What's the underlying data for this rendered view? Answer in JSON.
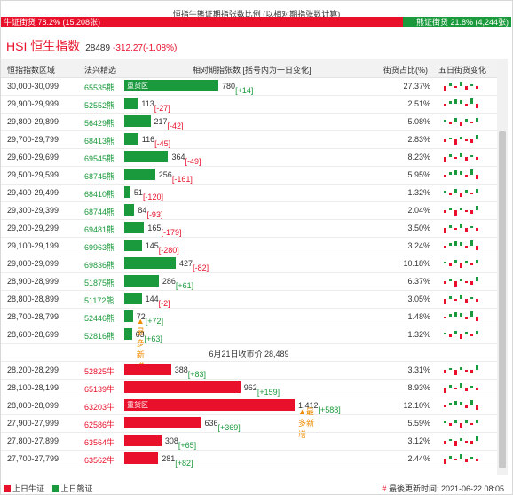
{
  "title": "恒指牛熊证期指张数比例 (以相对期指张数计算)",
  "ratio": {
    "bull_label": "牛证街货 78.2% (15,208张)",
    "bear_label": "熊证街货 21.8% (4,244张)",
    "bull_fraction": 0.782
  },
  "index": {
    "name": "HSI 恒生指数",
    "price": "28489",
    "change": "-312.27(-1.08%)"
  },
  "headers": {
    "range": "恒指指数区域",
    "code": "法兴精选",
    "rel": "相对期指张数 [括号内为一日变化]",
    "share": "街货占比(%)",
    "trend": "五日街货变化"
  },
  "rows_bear": [
    {
      "range": "30,000-30,099",
      "code": "65535熊",
      "value": 780,
      "label": "780",
      "change": "[+14]",
      "pct": "27.37%",
      "tag": "重货区",
      "note": ""
    },
    {
      "range": "29,900-29,999",
      "code": "52552熊",
      "value": 113,
      "label": "113",
      "change": "[-27]",
      "pct": "2.51%",
      "tag": "",
      "note": ""
    },
    {
      "range": "29,800-29,899",
      "code": "56429熊",
      "value": 217,
      "label": "217",
      "change": "[-42]",
      "pct": "5.08%",
      "tag": "",
      "note": ""
    },
    {
      "range": "29,700-29,799",
      "code": "68413熊",
      "value": 116,
      "label": "116",
      "change": "[-45]",
      "pct": "2.83%",
      "tag": "",
      "note": ""
    },
    {
      "range": "29,600-29,699",
      "code": "69545熊",
      "value": 364,
      "label": "364",
      "change": "[-49]",
      "pct": "8.23%",
      "tag": "",
      "note": ""
    },
    {
      "range": "29,500-29,599",
      "code": "68745熊",
      "value": 256,
      "label": "256",
      "change": "[-161]",
      "pct": "5.95%",
      "tag": "",
      "note": ""
    },
    {
      "range": "29,400-29,499",
      "code": "68410熊",
      "value": 51,
      "label": "51",
      "change": "[-120]",
      "pct": "1.32%",
      "tag": "",
      "note": ""
    },
    {
      "range": "29,300-29,399",
      "code": "68744熊",
      "value": 84,
      "label": "84",
      "change": "[-93]",
      "pct": "2.04%",
      "tag": "",
      "note": ""
    },
    {
      "range": "29,200-29,299",
      "code": "69481熊",
      "value": 165,
      "label": "165",
      "change": "[-179]",
      "pct": "3.50%",
      "tag": "",
      "note": ""
    },
    {
      "range": "29,100-29,199",
      "code": "69963熊",
      "value": 145,
      "label": "145",
      "change": "[-280]",
      "pct": "3.24%",
      "tag": "",
      "note": ""
    },
    {
      "range": "29,000-29,099",
      "code": "69836熊",
      "value": 427,
      "label": "427",
      "change": "[-82]",
      "pct": "10.18%",
      "tag": "",
      "note": ""
    },
    {
      "range": "28,900-28,999",
      "code": "51875熊",
      "value": 286,
      "label": "286",
      "change": "[+61]",
      "pct": "6.37%",
      "tag": "",
      "note": ""
    },
    {
      "range": "28,800-28,899",
      "code": "51172熊",
      "value": 144,
      "label": "144",
      "change": "[-2]",
      "pct": "3.05%",
      "tag": "",
      "note": ""
    },
    {
      "range": "28,700-28,799",
      "code": "52446熊",
      "value": 72,
      "label": "72",
      "change": "[+72]",
      "pct": "1.48%",
      "tag": "",
      "note": "▲最多新增"
    },
    {
      "range": "28,600-28,699",
      "code": "52816熊",
      "value": 63,
      "label": "63",
      "change": "[+63]",
      "pct": "1.32%",
      "tag": "",
      "note": ""
    }
  ],
  "separator": "6月21日收市价 28,489",
  "rows_bull": [
    {
      "range": "28,200-28,299",
      "code": "52825牛",
      "value": 388,
      "label": "388",
      "change": "[+83]",
      "pct": "3.31%",
      "tag": "",
      "note": ""
    },
    {
      "range": "28,100-28,199",
      "code": "65139牛",
      "value": 962,
      "label": "962",
      "change": "[+159]",
      "pct": "8.93%",
      "tag": "",
      "note": ""
    },
    {
      "range": "28,000-28,099",
      "code": "63203牛",
      "value": 1412,
      "label": "1,412",
      "change": "[+588]",
      "pct": "12.10%",
      "tag": "重货区",
      "note": "▲最多新增"
    },
    {
      "range": "27,900-27,999",
      "code": "62586牛",
      "value": 636,
      "label": "636",
      "change": "[+369]",
      "pct": "5.59%",
      "tag": "",
      "note": ""
    },
    {
      "range": "27,800-27,899",
      "code": "63564牛",
      "value": 308,
      "label": "308",
      "change": "[+65]",
      "pct": "3.12%",
      "tag": "",
      "note": ""
    },
    {
      "range": "27,700-27,799",
      "code": "63562牛",
      "value": 281,
      "label": "281",
      "change": "[+82]",
      "pct": "2.44%",
      "tag": "",
      "note": ""
    }
  ],
  "legend": {
    "bull": "上日牛证",
    "bear": "上日熊证"
  },
  "updated": "最後更新时间: 2021-06-22 08:05",
  "colors": {
    "bull": "#e8102a",
    "bear": "#1a9a3c"
  }
}
